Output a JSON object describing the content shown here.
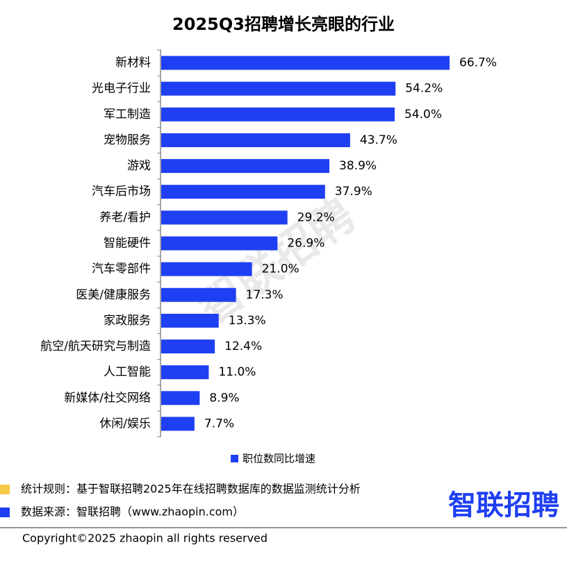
{
  "chart_data": {
    "type": "barh",
    "title": "2025Q3招聘增长亮眼的行业",
    "categories": [
      "新材料",
      "光电子行业",
      "军工制造",
      "宠物服务",
      "游戏",
      "汽车后市场",
      "养老/看护",
      "智能硬件",
      "汽车零部件",
      "医美/健康服务",
      "家政服务",
      "航空/航天研究与制造",
      "人工智能",
      "新媒体/社交网络",
      "休闲/娱乐"
    ],
    "series": [
      {
        "name": "职位数同比增速",
        "color": "#1f3ff2",
        "values": [
          66.7,
          54.2,
          54.0,
          43.7,
          38.9,
          37.9,
          29.2,
          26.9,
          21.0,
          17.3,
          13.3,
          12.4,
          11.0,
          8.9,
          7.7
        ],
        "value_labels": [
          "66.7%",
          "54.2%",
          "54.0%",
          "43.7%",
          "38.9%",
          "37.9%",
          "29.2%",
          "26.9%",
          "21.0%",
          "17.3%",
          "13.3%",
          "12.4%",
          "11.0%",
          "8.9%",
          "7.7%"
        ]
      }
    ],
    "watermark": "智联招聘"
  },
  "footer": {
    "rule_note": "统计规则：基于智联招聘2025年在线招聘数据库的数据监测统计分析",
    "source_note": "数据来源：智联招聘（www.zhaopin.com）",
    "logo": "智联招聘",
    "copyright": "Copyright©2025 zhaopin all rights reserved"
  }
}
